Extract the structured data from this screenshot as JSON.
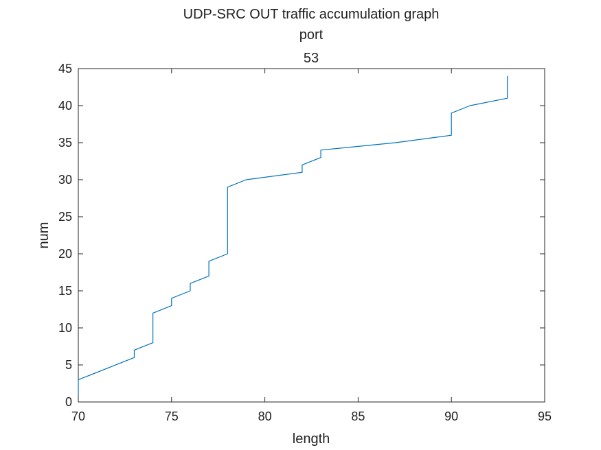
{
  "chart_data": {
    "type": "line",
    "title": [
      "UDP-SRC OUT traffic accumulation graph",
      "port",
      "53"
    ],
    "xlabel": "length",
    "ylabel": "num",
    "xlim": [
      70,
      95
    ],
    "ylim": [
      0,
      45
    ],
    "xticks": [
      "70",
      "75",
      "80",
      "85",
      "90",
      "95"
    ],
    "yticks": [
      "0",
      "5",
      "10",
      "15",
      "20",
      "25",
      "30",
      "35",
      "40",
      "45"
    ],
    "grid": false,
    "series": [
      {
        "color": "#0072BD",
        "x": [
          70,
          70,
          73,
          73,
          74,
          74,
          75,
          75,
          76,
          76,
          77,
          77,
          78,
          78,
          79,
          82,
          82,
          83,
          83,
          87,
          90,
          90,
          91,
          93,
          93
        ],
        "y": [
          1,
          3,
          6,
          7,
          8,
          12,
          13,
          14,
          15,
          16,
          17,
          19,
          20,
          29,
          30,
          31,
          32,
          33,
          34,
          35,
          36,
          39,
          40,
          41,
          44
        ]
      }
    ]
  }
}
